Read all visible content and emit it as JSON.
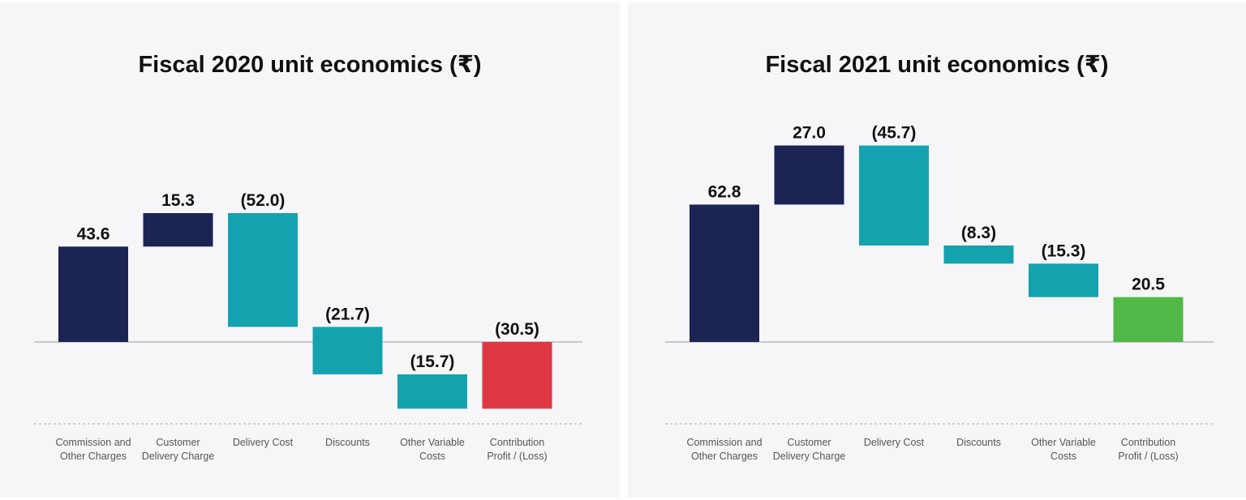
{
  "colors": {
    "positive": "#1c2454",
    "negative": "#14a3ae",
    "loss": "#e03744",
    "profit": "#52b848",
    "axis": "#999999",
    "text": "#111111"
  },
  "chart_data": [
    {
      "type": "waterfall",
      "title": "Fiscal 2020 unit economics (₹)",
      "categories": [
        "Commission and Other Charges",
        "Customer Delivery Charge",
        "Delivery Cost",
        "Discounts",
        "Other Variable Costs",
        "Contribution Profit / (Loss)"
      ],
      "values": [
        43.6,
        15.3,
        -52.0,
        -21.7,
        -15.7,
        -30.5
      ],
      "labels": [
        "43.6",
        "15.3",
        "(52.0)",
        "(21.7)",
        "(15.7)",
        "(30.5)"
      ],
      "kinds": [
        "positive",
        "positive",
        "negative",
        "negative",
        "negative",
        "total"
      ],
      "ylim": [
        -30.5,
        58.9
      ]
    },
    {
      "type": "waterfall",
      "title": "Fiscal 2021 unit economics (₹)",
      "categories": [
        "Commission and Other Charges",
        "Customer Delivery Charge",
        "Delivery Cost",
        "Discounts",
        "Other Variable Costs",
        "Contribution Profit / (Loss)"
      ],
      "values": [
        62.8,
        27.0,
        -45.7,
        -8.3,
        -15.3,
        20.5
      ],
      "labels": [
        "62.8",
        "27.0",
        "(45.7)",
        "(8.3)",
        "(15.3)",
        "20.5"
      ],
      "kinds": [
        "positive",
        "positive",
        "negative",
        "negative",
        "negative",
        "total"
      ],
      "ylim": [
        0,
        89.8
      ]
    }
  ]
}
